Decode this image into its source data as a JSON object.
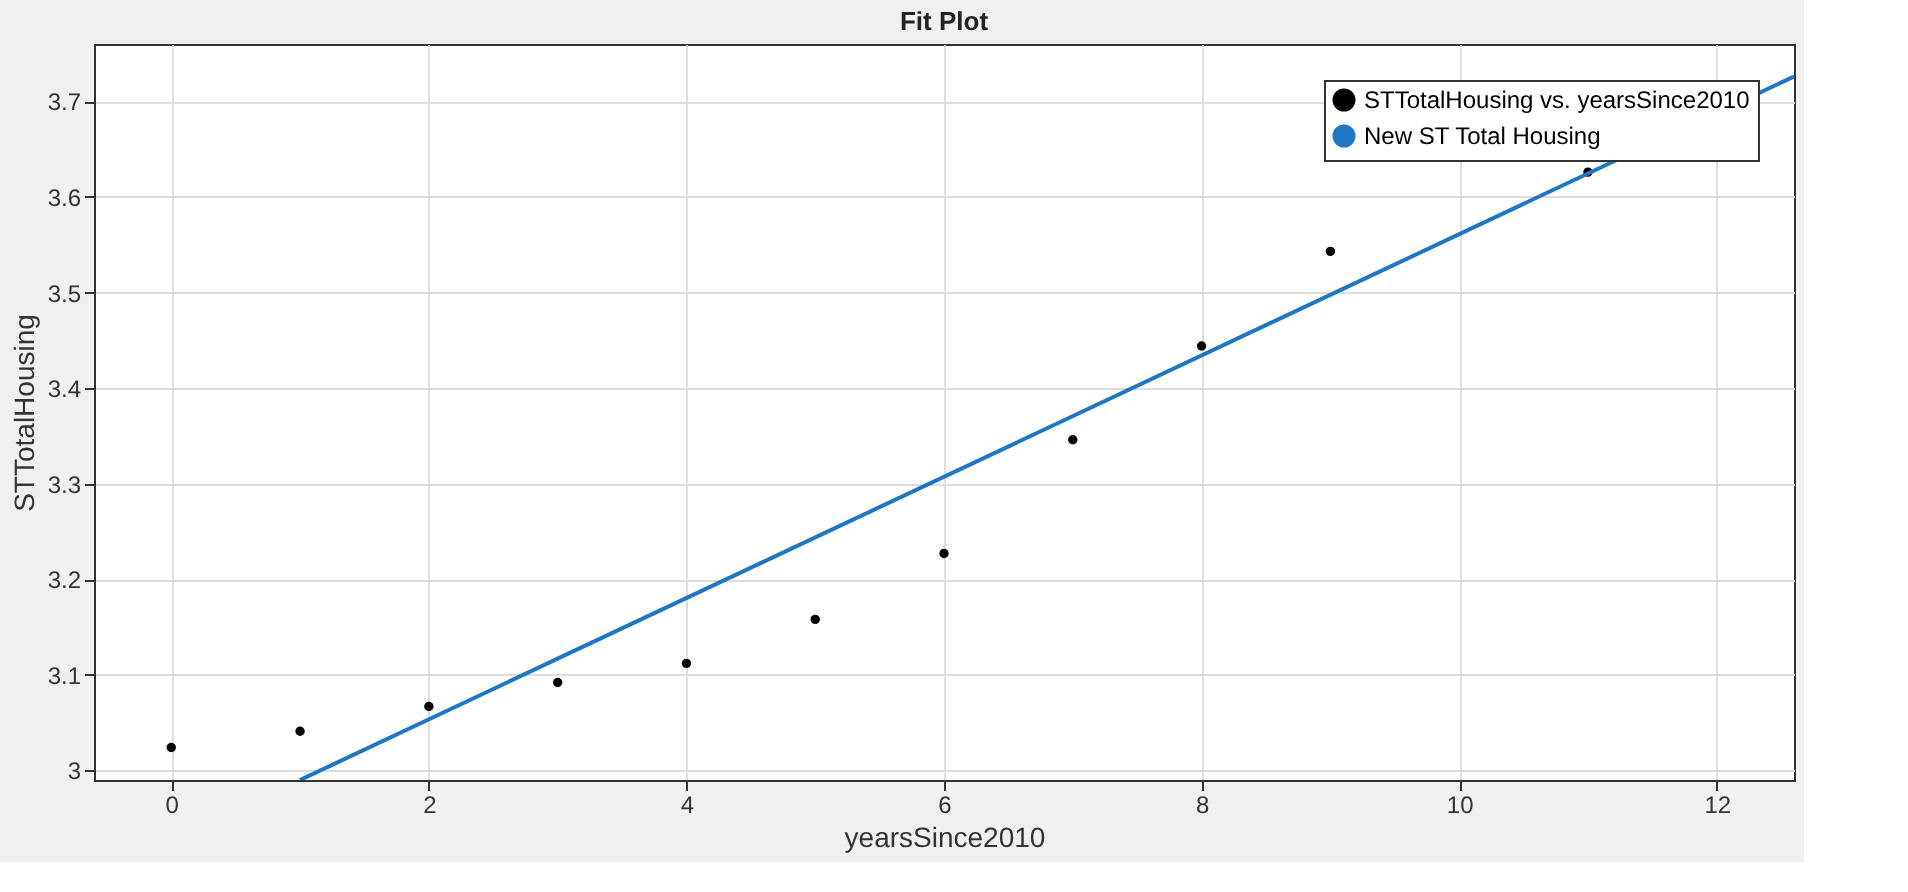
{
  "chart_data": {
    "type": "scatter",
    "title": "Fit Plot",
    "xlabel": "yearsSince2010",
    "ylabel": "STTotalHousing",
    "series": [
      {
        "name": "STTotalHousing vs. yearsSince2010",
        "type": "scatter",
        "color": "#000000",
        "marker": "circle",
        "x": [
          0,
          1,
          2,
          3,
          4,
          5,
          6,
          7,
          8,
          9,
          11
        ],
        "values": [
          3.024,
          3.041,
          3.067,
          3.092,
          3.112,
          3.158,
          3.227,
          3.346,
          3.444,
          3.543,
          3.626
        ]
      },
      {
        "name": "New ST Total Housing",
        "type": "line",
        "color": "#1f77c4",
        "line_style": "solid",
        "x": [
          1,
          12.6
        ],
        "values": [
          2.99,
          3.726
        ]
      }
    ],
    "xlim": [
      -0.6,
      12.6
    ],
    "ylim": [
      2.99,
      3.76
    ],
    "xticks": [
      0,
      2,
      4,
      6,
      8,
      10,
      12
    ],
    "yticks": [
      3,
      3.1,
      3.2,
      3.3,
      3.4,
      3.5,
      3.6,
      3.7
    ],
    "grid": true,
    "legend": "top right"
  }
}
